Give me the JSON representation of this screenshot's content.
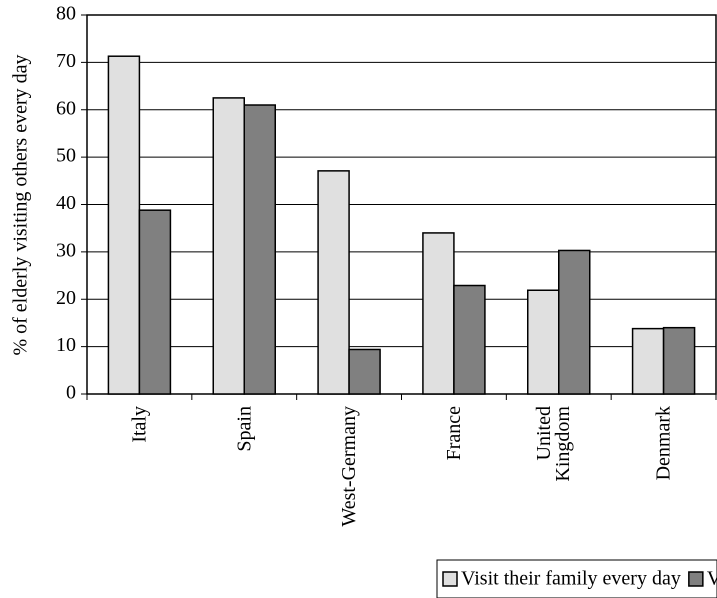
{
  "chart_data": {
    "type": "bar",
    "y_label": "% of elderly visiting others every day",
    "categories": [
      "Italy",
      "Spain",
      "West-Germany",
      "France",
      "United Kingdom",
      "Denmark"
    ],
    "series": [
      {
        "name": "Visit their family every day",
        "color": "#e0e0e0",
        "values": [
          71.3,
          62.5,
          47.1,
          34.0,
          21.9,
          13.8
        ]
      },
      {
        "name": "Visit their friends every day",
        "color": "#808080",
        "values": [
          38.8,
          61.0,
          9.4,
          22.9,
          30.3,
          14.0
        ]
      }
    ],
    "ylim": [
      0,
      80
    ],
    "yticks": [
      0,
      10,
      20,
      30,
      40,
      50,
      60,
      70,
      80
    ],
    "grid": true,
    "legend": "bottom-right"
  }
}
